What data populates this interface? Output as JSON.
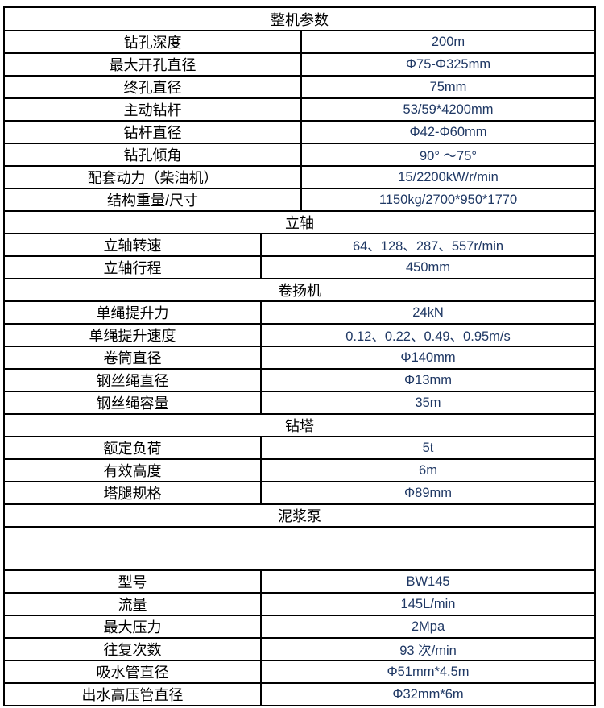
{
  "document": {
    "title": "整机参数",
    "value_color": "#1f3864",
    "label_color": "#000000",
    "border_color": "#000000"
  },
  "table": {
    "rows": [
      {
        "type": "title",
        "text": "整机参数"
      },
      {
        "type": "row",
        "split": "wide",
        "label": "钻孔深度",
        "value": "200m"
      },
      {
        "type": "row",
        "split": "wide",
        "label": "最大开孔直径",
        "value": "Φ75-Φ325mm"
      },
      {
        "type": "row",
        "split": "wide",
        "label": "终孔直径",
        "value": "75mm"
      },
      {
        "type": "row",
        "split": "wide",
        "label": "主动钻杆",
        "value": "53/59*4200mm"
      },
      {
        "type": "row",
        "split": "wide",
        "label": "钻杆直径",
        "value": "Φ42-Φ60mm"
      },
      {
        "type": "row",
        "split": "wide",
        "label": "钻孔倾角",
        "value": "90° ～75°"
      },
      {
        "type": "row",
        "split": "wide",
        "label": "配套动力（柴油机）",
        "value": "15/2200kW/r/min"
      },
      {
        "type": "row",
        "split": "wide",
        "label": "结构重量/尺寸",
        "value": "1150kg/2700*950*1770"
      },
      {
        "type": "section",
        "text": "立轴"
      },
      {
        "type": "row",
        "split": "narrow",
        "label": "立轴转速",
        "value": "64、128、287、557r/min"
      },
      {
        "type": "row",
        "split": "narrow",
        "label": "立轴行程",
        "value": "450mm"
      },
      {
        "type": "section",
        "text": "卷扬机"
      },
      {
        "type": "row",
        "split": "narrow",
        "label": "单绳提升力",
        "value": "24kN"
      },
      {
        "type": "row",
        "split": "narrow",
        "label": "单绳提升速度",
        "value": "0.12、0.22、0.49、0.95m/s"
      },
      {
        "type": "row",
        "split": "narrow",
        "label": "卷筒直径",
        "value": "Φ140mm"
      },
      {
        "type": "row",
        "split": "narrow",
        "label": "钢丝绳直径",
        "value": "Φ13mm"
      },
      {
        "type": "row",
        "split": "narrow",
        "label": "钢丝绳容量",
        "value": "35m"
      },
      {
        "type": "section",
        "text": "钻塔"
      },
      {
        "type": "row",
        "split": "narrow",
        "label": "额定负荷",
        "value": "5t"
      },
      {
        "type": "row",
        "split": "narrow",
        "label": "有效高度",
        "value": "6m"
      },
      {
        "type": "row",
        "split": "narrow",
        "label": "塔腿规格",
        "value": "Φ89mm"
      },
      {
        "type": "section",
        "text": "泥浆泵"
      },
      {
        "type": "empty"
      },
      {
        "type": "row",
        "split": "narrow",
        "label": "型号",
        "value": "BW145"
      },
      {
        "type": "row",
        "split": "narrow",
        "label": "流量",
        "value": "145L/min"
      },
      {
        "type": "row",
        "split": "narrow",
        "label": "最大压力",
        "value": "2Mpa"
      },
      {
        "type": "row",
        "split": "narrow",
        "label": "往复次数",
        "value": "93 次/min"
      },
      {
        "type": "row",
        "split": "narrow",
        "label": "吸水管直径",
        "value": "Φ51mm*4.5m"
      },
      {
        "type": "row",
        "split": "narrow",
        "label": "出水高压管直径",
        "value": "Φ32mm*6m"
      }
    ]
  }
}
